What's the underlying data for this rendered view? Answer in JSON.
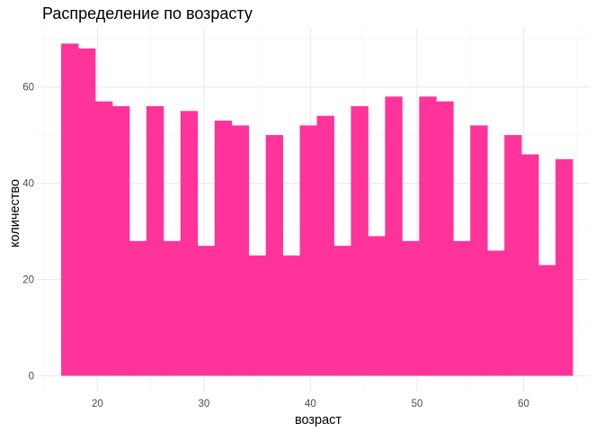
{
  "chart_data": {
    "type": "bar",
    "title": "Распределение по возрасту",
    "xlabel": "возраст",
    "ylabel": "количество",
    "bar_color": "#FF3399",
    "xlim": [
      14.4,
      66.2
    ],
    "ylim": [
      -3.45,
      72.45
    ],
    "x_ticks": [
      20,
      30,
      40,
      50,
      60
    ],
    "y_ticks": [
      0,
      20,
      40,
      60
    ],
    "grid": true,
    "bins": [
      {
        "x0": 16.6,
        "x1": 18.2,
        "count": 69
      },
      {
        "x0": 18.2,
        "x1": 19.8,
        "count": 68
      },
      {
        "x0": 19.8,
        "x1": 21.4,
        "count": 57
      },
      {
        "x0": 21.4,
        "x1": 23.0,
        "count": 56
      },
      {
        "x0": 23.0,
        "x1": 24.6,
        "count": 28
      },
      {
        "x0": 24.6,
        "x1": 26.2,
        "count": 56
      },
      {
        "x0": 26.2,
        "x1": 27.8,
        "count": 28
      },
      {
        "x0": 27.8,
        "x1": 29.4,
        "count": 55
      },
      {
        "x0": 29.4,
        "x1": 31.0,
        "count": 27
      },
      {
        "x0": 31.0,
        "x1": 32.6,
        "count": 53
      },
      {
        "x0": 32.6,
        "x1": 34.2,
        "count": 52
      },
      {
        "x0": 34.2,
        "x1": 35.8,
        "count": 25
      },
      {
        "x0": 35.8,
        "x1": 37.4,
        "count": 50
      },
      {
        "x0": 37.4,
        "x1": 39.0,
        "count": 25
      },
      {
        "x0": 39.0,
        "x1": 40.6,
        "count": 52
      },
      {
        "x0": 40.6,
        "x1": 42.2,
        "count": 54
      },
      {
        "x0": 42.2,
        "x1": 43.8,
        "count": 27
      },
      {
        "x0": 43.8,
        "x1": 45.4,
        "count": 56
      },
      {
        "x0": 45.4,
        "x1": 47.0,
        "count": 29
      },
      {
        "x0": 47.0,
        "x1": 48.6,
        "count": 58
      },
      {
        "x0": 48.6,
        "x1": 50.2,
        "count": 28
      },
      {
        "x0": 50.2,
        "x1": 51.8,
        "count": 58
      },
      {
        "x0": 51.8,
        "x1": 53.4,
        "count": 57
      },
      {
        "x0": 53.4,
        "x1": 55.0,
        "count": 28
      },
      {
        "x0": 55.0,
        "x1": 56.6,
        "count": 52
      },
      {
        "x0": 56.6,
        "x1": 58.2,
        "count": 26
      },
      {
        "x0": 58.2,
        "x1": 59.8,
        "count": 50
      },
      {
        "x0": 59.8,
        "x1": 61.4,
        "count": 46
      },
      {
        "x0": 61.4,
        "x1": 63.0,
        "count": 23
      },
      {
        "x0": 63.0,
        "x1": 64.6,
        "count": 45
      }
    ]
  }
}
